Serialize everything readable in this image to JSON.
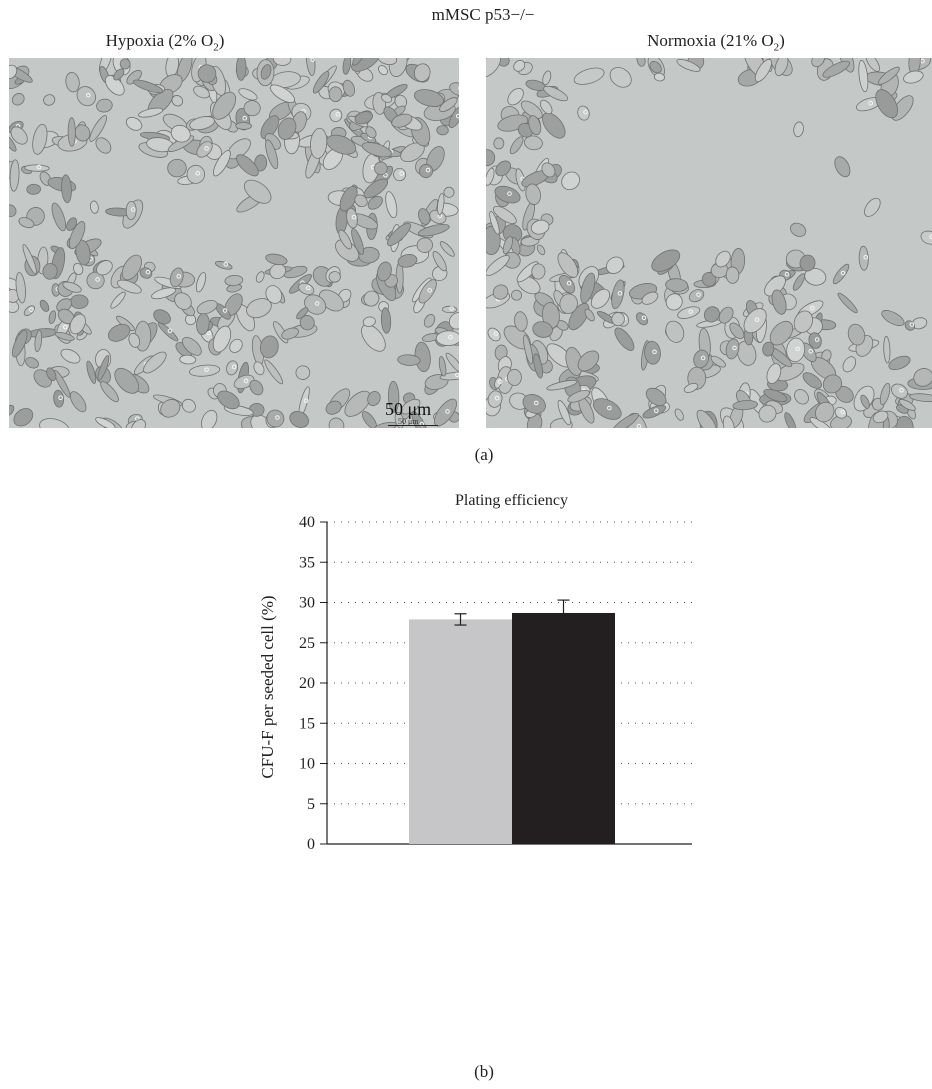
{
  "figure": {
    "title_html": "mMSC p53−/−",
    "title": "mMSC p53−/−",
    "panel_a": {
      "left_label": "Hypoxia (2% O2)",
      "right_label": "Normoxia (21% O2)",
      "scale_label": "50 μm",
      "scale_mini_label": "50 μm",
      "caption": "(a)"
    },
    "panel_b": {
      "caption": "(b)"
    }
  },
  "chart_data": {
    "type": "bar",
    "title": "Plating efficiency",
    "xlabel": "",
    "ylabel": "CFU-F per seeded cell (%)",
    "ylim": [
      0,
      40
    ],
    "yticks": [
      0,
      5,
      10,
      15,
      20,
      25,
      30,
      35,
      40
    ],
    "grid": "dotted-horizontal",
    "categories": [
      "",
      ""
    ],
    "values": [
      27.9,
      28.7
    ],
    "errors": [
      0.7,
      1.6
    ],
    "colors": [
      "#c6c6c8",
      "#231f20"
    ]
  }
}
